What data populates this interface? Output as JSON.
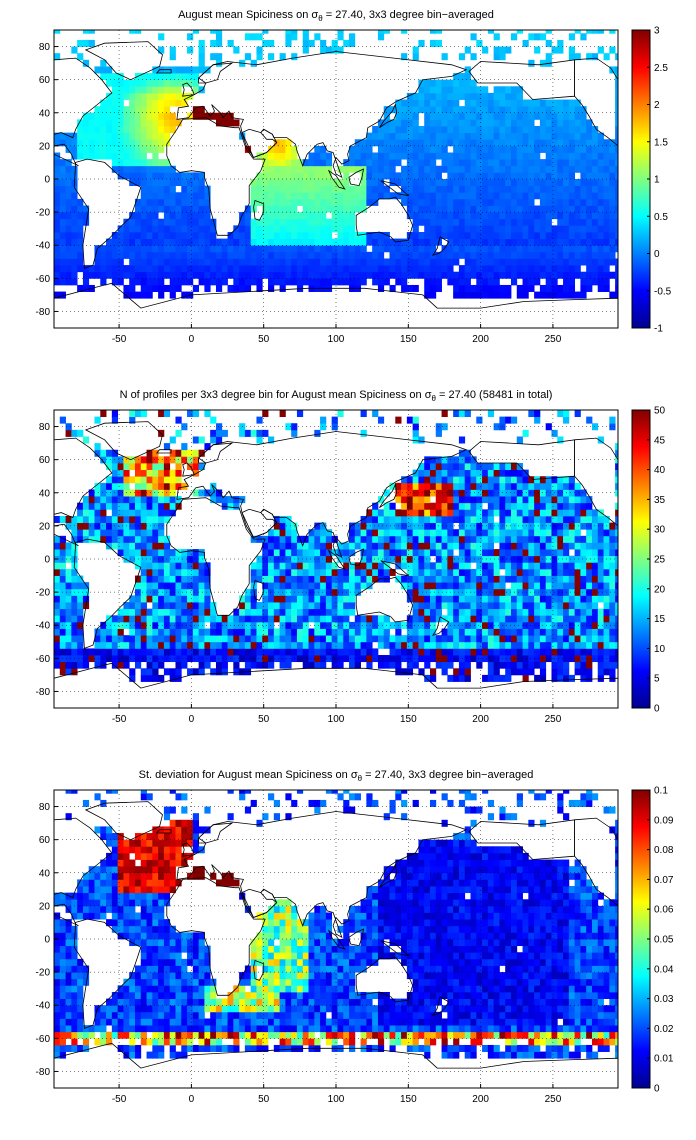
{
  "chart_data": [
    {
      "type": "heatmap",
      "title_prefix": "August mean Spiciness on ",
      "title_sigma": "σ",
      "title_sub": "θ",
      "title_suffix": " = 27.40, 3x3 degree bin−averaged",
      "xticks": [
        -50,
        0,
        50,
        100,
        150,
        200,
        250
      ],
      "yticks": [
        80,
        60,
        40,
        20,
        0,
        -20,
        -40,
        -60,
        -80
      ],
      "xlim": [
        -95,
        295
      ],
      "ylim": [
        -90,
        90
      ],
      "colorbar_ticks": [
        "3",
        "2.5",
        "2",
        "1.5",
        "1",
        "0.5",
        "0",
        "-0.5",
        "-1"
      ],
      "colorbar_range": [
        -1,
        3
      ],
      "colormap": "jet",
      "grid": true
    },
    {
      "type": "heatmap",
      "title_prefix": "N of profiles per 3x3 degree bin for August mean Spiciness on ",
      "title_sigma": "σ",
      "title_sub": "θ",
      "title_suffix": " = 27.40 (58481 in total)",
      "xticks": [
        -50,
        0,
        50,
        100,
        150,
        200,
        250
      ],
      "yticks": [
        80,
        60,
        40,
        20,
        0,
        -20,
        -40,
        -60,
        -80
      ],
      "xlim": [
        -95,
        295
      ],
      "ylim": [
        -90,
        90
      ],
      "colorbar_ticks": [
        "50",
        "45",
        "40",
        "35",
        "30",
        "25",
        "20",
        "15",
        "10",
        "5",
        "0"
      ],
      "colorbar_range": [
        0,
        50
      ],
      "colormap": "jet",
      "grid": true
    },
    {
      "type": "heatmap",
      "title_prefix": "St. deviation for August mean Spiciness on ",
      "title_sigma": "σ",
      "title_sub": "θ",
      "title_suffix": " = 27.40, 3x3 degree bin−averaged",
      "xticks": [
        -50,
        0,
        50,
        100,
        150,
        200,
        250
      ],
      "yticks": [
        80,
        60,
        40,
        20,
        0,
        -20,
        -40,
        -60,
        -80
      ],
      "xlim": [
        -95,
        295
      ],
      "ylim": [
        -90,
        90
      ],
      "colorbar_ticks": [
        "0.1",
        "0.09",
        "0.08",
        "0.07",
        "0.06",
        "0.05",
        "0.04",
        "0.03",
        "0.02",
        "0.01",
        "0"
      ],
      "colorbar_range": [
        0,
        0.1
      ],
      "colormap": "jet",
      "grid": true
    }
  ]
}
